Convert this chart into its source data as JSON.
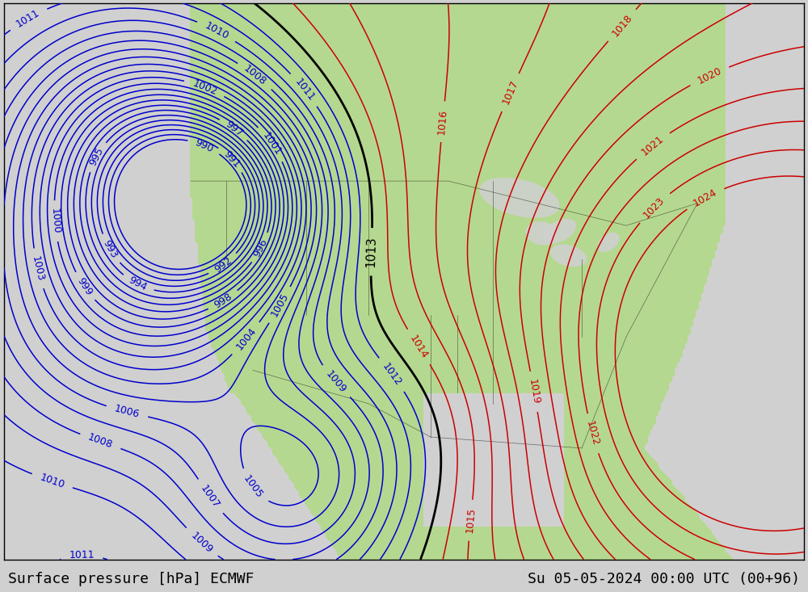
{
  "title_left": "Surface pressure [hPa] ECMWF",
  "title_right": "Su 05-05-2024 00:00 UTC (00+96)",
  "bg_land_color": "#b5d890",
  "bg_ocean_color": "#d0d0d0",
  "label_fontsize": 9,
  "footer_fontsize": 13,
  "contour_blue_color": "#0000cc",
  "contour_red_color": "#cc0000",
  "contour_black_color": "#000000",
  "contour_linewidth": 1.1,
  "contour_black_linewidth": 2.0,
  "figsize": [
    10.0,
    7.33
  ],
  "dpi": 100,
  "lon_min": -145,
  "lon_max": -55,
  "lat_min": 15,
  "lat_max": 65
}
